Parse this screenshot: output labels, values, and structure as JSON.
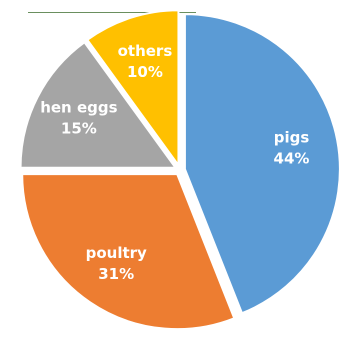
{
  "chart_data": {
    "type": "pie",
    "title": "",
    "categories": [
      "pigs",
      "poultry",
      "hen eggs",
      "others"
    ],
    "values": [
      44,
      31,
      15,
      10
    ],
    "percent_labels": [
      "44%",
      "31%",
      "15%",
      "10%"
    ],
    "colors": [
      "#5b9bd5",
      "#ed7d31",
      "#a5a5a5",
      "#ffc000"
    ],
    "legend": "none",
    "data_labels": "inside"
  }
}
